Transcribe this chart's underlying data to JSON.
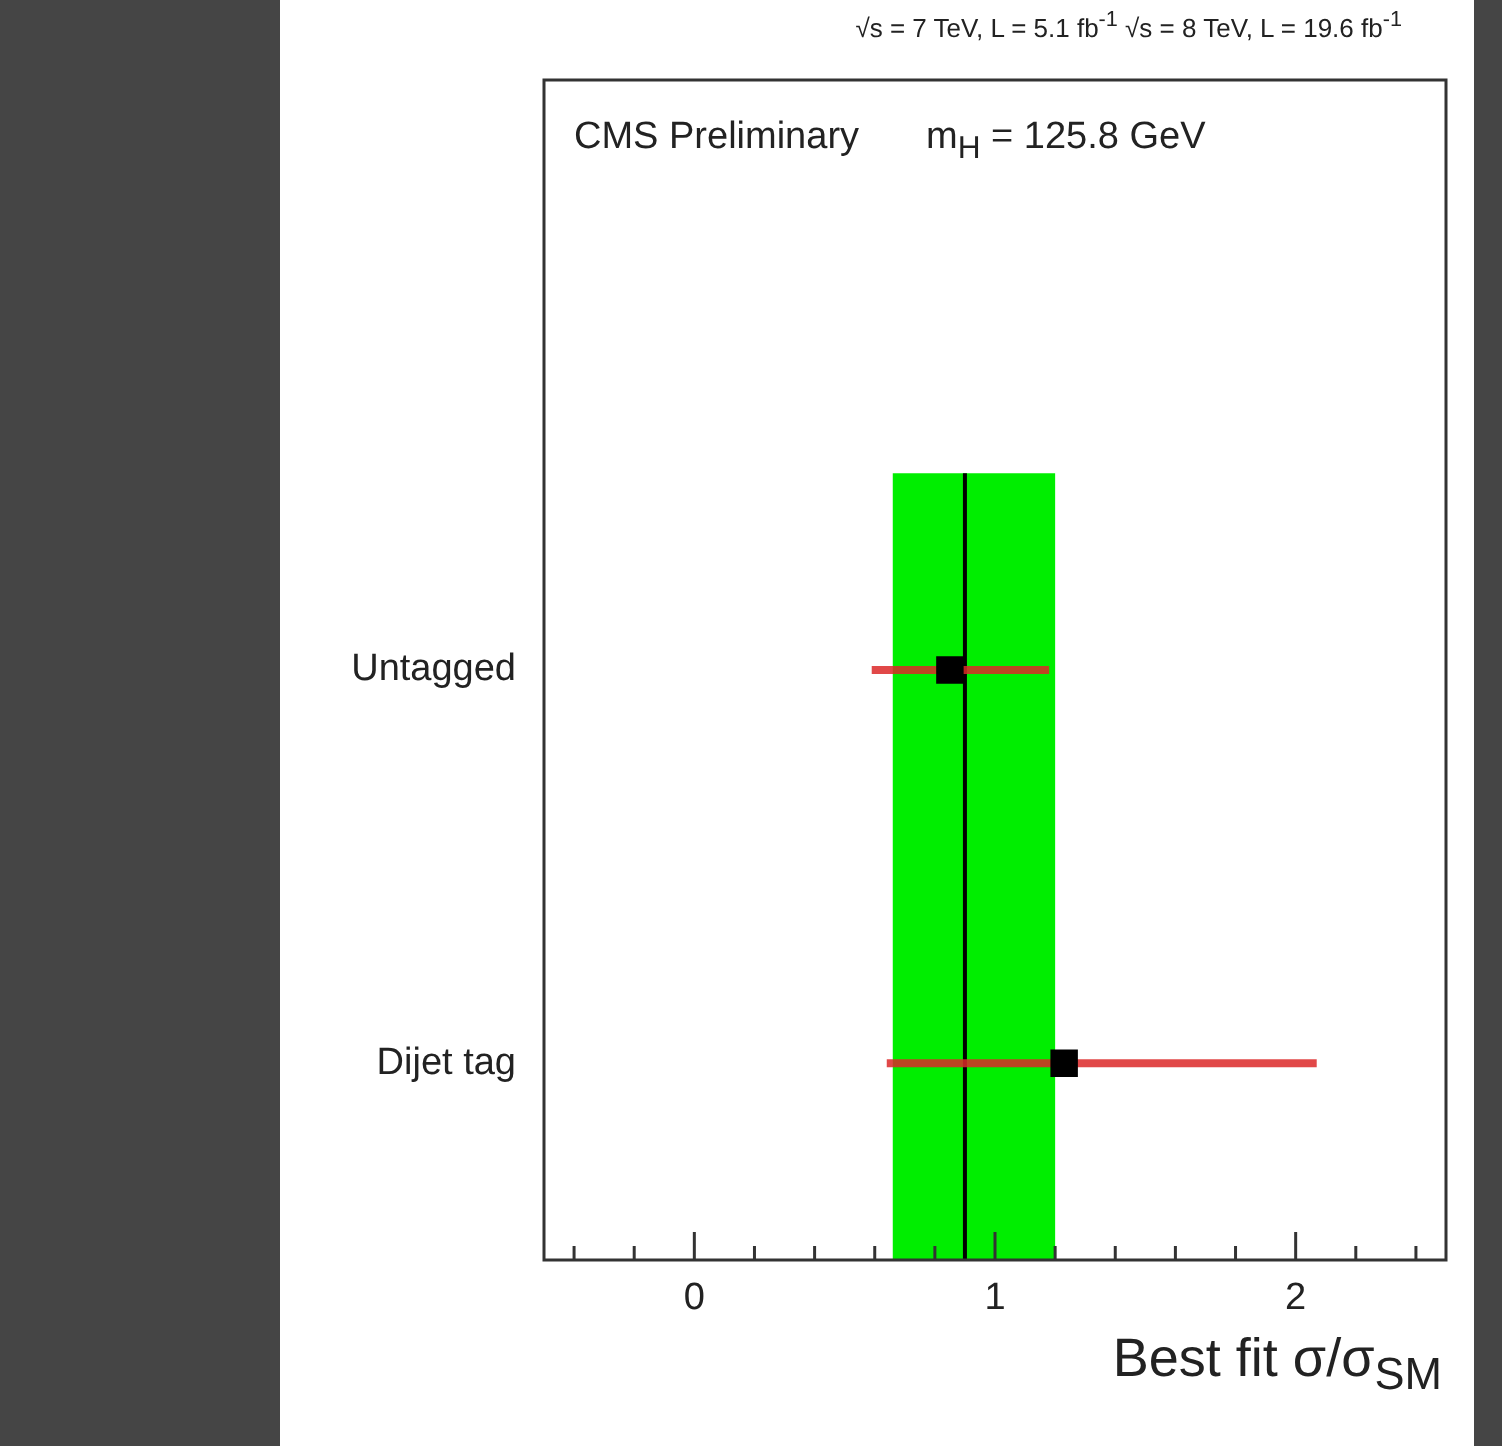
{
  "chart_data": {
    "type": "scatter",
    "orientation": "horizontal",
    "title": "√s = 7 TeV, L = 5.1 fb$^{-1}$  √s = 8 TeV, L = 19.6 fb$^{-1}$",
    "annotations": [
      "CMS Preliminary",
      "m$_{H}$ = 125.8 GeV"
    ],
    "xlabel": "Best fit σ/σ$_{SM}$",
    "categories": [
      "Untagged",
      "Dijet tag"
    ],
    "values": [
      0.85,
      1.23
    ],
    "color": "#000000",
    "marker": "square",
    "errors": [
      [
        0.59,
        1.18
      ],
      [
        0.64,
        2.07
      ]
    ],
    "xlim": [
      -0.5,
      2.5
    ],
    "xticks": [
      {
        "value": -0.4,
        "label": null
      },
      {
        "value": -0.2,
        "label": null
      },
      0,
      {
        "value": 0.2,
        "label": null
      },
      {
        "value": 0.4,
        "label": null
      },
      {
        "value": 0.6,
        "label": null
      },
      {
        "value": 0.8,
        "label": null
      },
      1,
      {
        "value": 1.2,
        "label": null
      },
      {
        "value": 1.4,
        "label": null
      },
      {
        "value": 1.6,
        "label": null
      },
      {
        "value": 1.8,
        "label": null
      },
      2,
      {
        "value": 2.2,
        "label": null
      },
      {
        "value": 2.4,
        "label": null
      }
    ],
    "ref_lines": [
      {
        "axis": "x",
        "value": 0.9,
        "color": "#000000"
      }
    ],
    "bands": [
      {
        "axis": "x",
        "from": 0.66,
        "to": 1.2,
        "color": "#00ee00"
      }
    ],
    "grid": false,
    "legend": false
  }
}
